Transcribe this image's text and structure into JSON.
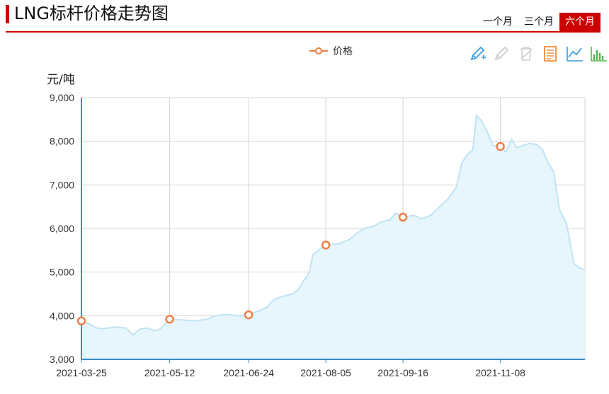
{
  "header": {
    "title": "LNG标杆价格走势图"
  },
  "ranges": [
    {
      "label": "一个月",
      "active": false
    },
    {
      "label": "三个月",
      "active": false
    },
    {
      "label": "六个月",
      "active": true
    }
  ],
  "colors": {
    "accent": "#cc0000",
    "line": "#bfe3f3",
    "area": "#e6f6fc",
    "marker": "#f07d44",
    "axis": "#3a8cc5"
  },
  "toolbox": [
    "pencil-icon",
    "eraser-icon",
    "trash-icon",
    "data-view-icon",
    "line-chart-icon",
    "bar-chart-icon"
  ],
  "chart_data": {
    "type": "area",
    "ylabel": "元/吨",
    "ylim": [
      3000,
      9000
    ],
    "yticks": [
      "3,000",
      "4,000",
      "5,000",
      "6,000",
      "7,000",
      "8,000",
      "9,000"
    ],
    "xlim": [
      "2021-03-25",
      "2021-12-24"
    ],
    "xticks": [
      "2021-03-25",
      "2021-05-12",
      "2021-06-24",
      "2021-08-05",
      "2021-09-16",
      "2021-11-08"
    ],
    "grid": true,
    "legend_position": "top-center",
    "series": [
      {
        "name": "价格",
        "points": [
          [
            "2021-03-25",
            3880
          ],
          [
            "2021-03-30",
            3800
          ],
          [
            "2021-04-02",
            3720
          ],
          [
            "2021-04-06",
            3700
          ],
          [
            "2021-04-12",
            3740
          ],
          [
            "2021-04-18",
            3720
          ],
          [
            "2021-04-22",
            3560
          ],
          [
            "2021-04-26",
            3700
          ],
          [
            "2021-04-30",
            3720
          ],
          [
            "2021-05-04",
            3650
          ],
          [
            "2021-05-07",
            3700
          ],
          [
            "2021-05-12",
            3920
          ],
          [
            "2021-05-20",
            3900
          ],
          [
            "2021-05-26",
            3880
          ],
          [
            "2021-06-01",
            3920
          ],
          [
            "2021-06-06",
            4000
          ],
          [
            "2021-06-12",
            4030
          ],
          [
            "2021-06-18",
            4000
          ],
          [
            "2021-06-24",
            4020
          ],
          [
            "2021-06-30",
            4120
          ],
          [
            "2021-07-04",
            4200
          ],
          [
            "2021-07-08",
            4380
          ],
          [
            "2021-07-13",
            4450
          ],
          [
            "2021-07-18",
            4500
          ],
          [
            "2021-07-21",
            4600
          ],
          [
            "2021-07-24",
            4800
          ],
          [
            "2021-07-27",
            5000
          ],
          [
            "2021-07-29",
            5400
          ],
          [
            "2021-08-01",
            5500
          ],
          [
            "2021-08-05",
            5620
          ],
          [
            "2021-08-12",
            5650
          ],
          [
            "2021-08-18",
            5750
          ],
          [
            "2021-08-22",
            5900
          ],
          [
            "2021-08-26",
            6000
          ],
          [
            "2021-08-31",
            6050
          ],
          [
            "2021-09-04",
            6150
          ],
          [
            "2021-09-09",
            6200
          ],
          [
            "2021-09-12",
            6350
          ],
          [
            "2021-09-16",
            6260
          ],
          [
            "2021-09-22",
            6300
          ],
          [
            "2021-09-26",
            6220
          ],
          [
            "2021-10-01",
            6300
          ],
          [
            "2021-10-06",
            6500
          ],
          [
            "2021-10-11",
            6700
          ],
          [
            "2021-10-15",
            6950
          ],
          [
            "2021-10-18",
            7500
          ],
          [
            "2021-10-21",
            7700
          ],
          [
            "2021-10-24",
            7800
          ],
          [
            "2021-10-26",
            8600
          ],
          [
            "2021-10-29",
            8450
          ],
          [
            "2021-11-01",
            8200
          ],
          [
            "2021-11-04",
            7900
          ],
          [
            "2021-11-08",
            7880
          ],
          [
            "2021-11-11",
            7750
          ],
          [
            "2021-11-14",
            8050
          ],
          [
            "2021-11-17",
            7850
          ],
          [
            "2021-11-20",
            7900
          ],
          [
            "2021-11-24",
            7950
          ],
          [
            "2021-11-28",
            7920
          ],
          [
            "2021-12-01",
            7800
          ],
          [
            "2021-12-04",
            7500
          ],
          [
            "2021-12-07",
            7300
          ],
          [
            "2021-12-10",
            6450
          ],
          [
            "2021-12-14",
            6100
          ],
          [
            "2021-12-18",
            5200
          ],
          [
            "2021-12-21",
            5100
          ],
          [
            "2021-12-24",
            5050
          ]
        ],
        "markers": [
          [
            "2021-03-25",
            3880
          ],
          [
            "2021-05-12",
            3920
          ],
          [
            "2021-06-24",
            4020
          ],
          [
            "2021-08-05",
            5620
          ],
          [
            "2021-09-16",
            6260
          ],
          [
            "2021-11-08",
            7880
          ]
        ]
      }
    ]
  }
}
